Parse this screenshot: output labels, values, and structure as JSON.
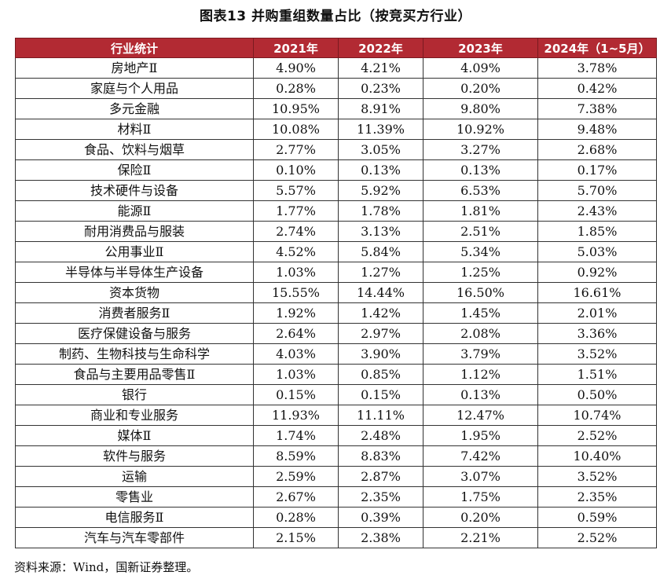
{
  "title": "图表13 并购重组数量占比（按竞买方行业）",
  "table": {
    "headers": [
      "行业统计",
      "2021年",
      "2022年",
      "2023年",
      "2024年（1~5月）"
    ],
    "rows": [
      [
        "房地产Ⅱ",
        "4.90%",
        "4.21%",
        "4.09%",
        "3.78%"
      ],
      [
        "家庭与个人用品",
        "0.28%",
        "0.23%",
        "0.20%",
        "0.42%"
      ],
      [
        "多元金融",
        "10.95%",
        "8.91%",
        "9.80%",
        "7.38%"
      ],
      [
        "材料Ⅱ",
        "10.08%",
        "11.39%",
        "10.92%",
        "9.48%"
      ],
      [
        "食品、饮料与烟草",
        "2.77%",
        "3.05%",
        "3.27%",
        "2.68%"
      ],
      [
        "保险Ⅱ",
        "0.10%",
        "0.13%",
        "0.13%",
        "0.17%"
      ],
      [
        "技术硬件与设备",
        "5.57%",
        "5.92%",
        "6.53%",
        "5.70%"
      ],
      [
        "能源Ⅱ",
        "1.77%",
        "1.78%",
        "1.81%",
        "2.43%"
      ],
      [
        "耐用消费品与服装",
        "2.74%",
        "3.13%",
        "2.51%",
        "1.85%"
      ],
      [
        "公用事业Ⅱ",
        "4.52%",
        "5.84%",
        "5.34%",
        "5.03%"
      ],
      [
        "半导体与半导体生产设备",
        "1.03%",
        "1.27%",
        "1.25%",
        "0.92%"
      ],
      [
        "资本货物",
        "15.55%",
        "14.44%",
        "16.50%",
        "16.61%"
      ],
      [
        "消费者服务Ⅱ",
        "1.92%",
        "1.42%",
        "1.45%",
        "2.01%"
      ],
      [
        "医疗保健设备与服务",
        "2.64%",
        "2.97%",
        "2.08%",
        "3.36%"
      ],
      [
        "制药、生物科技与生命科学",
        "4.03%",
        "3.90%",
        "3.79%",
        "3.52%"
      ],
      [
        "食品与主要用品零售Ⅱ",
        "1.03%",
        "0.85%",
        "1.12%",
        "1.51%"
      ],
      [
        "银行",
        "0.15%",
        "0.15%",
        "0.13%",
        "0.50%"
      ],
      [
        "商业和专业服务",
        "11.93%",
        "11.11%",
        "12.47%",
        "10.74%"
      ],
      [
        "媒体Ⅱ",
        "1.74%",
        "2.48%",
        "1.95%",
        "2.52%"
      ],
      [
        "软件与服务",
        "8.59%",
        "8.83%",
        "7.42%",
        "10.40%"
      ],
      [
        "运输",
        "2.59%",
        "2.87%",
        "3.07%",
        "3.52%"
      ],
      [
        "零售业",
        "2.67%",
        "2.35%",
        "1.75%",
        "2.35%"
      ],
      [
        "电信服务Ⅱ",
        "0.28%",
        "0.39%",
        "0.20%",
        "0.59%"
      ],
      [
        "汽车与汽车零部件",
        "2.15%",
        "2.38%",
        "2.21%",
        "2.52%"
      ]
    ]
  },
  "source": "资料来源：Wind，国新证券整理。",
  "colors": {
    "header_bg": "#b22a33",
    "header_text": "#ffffff"
  }
}
